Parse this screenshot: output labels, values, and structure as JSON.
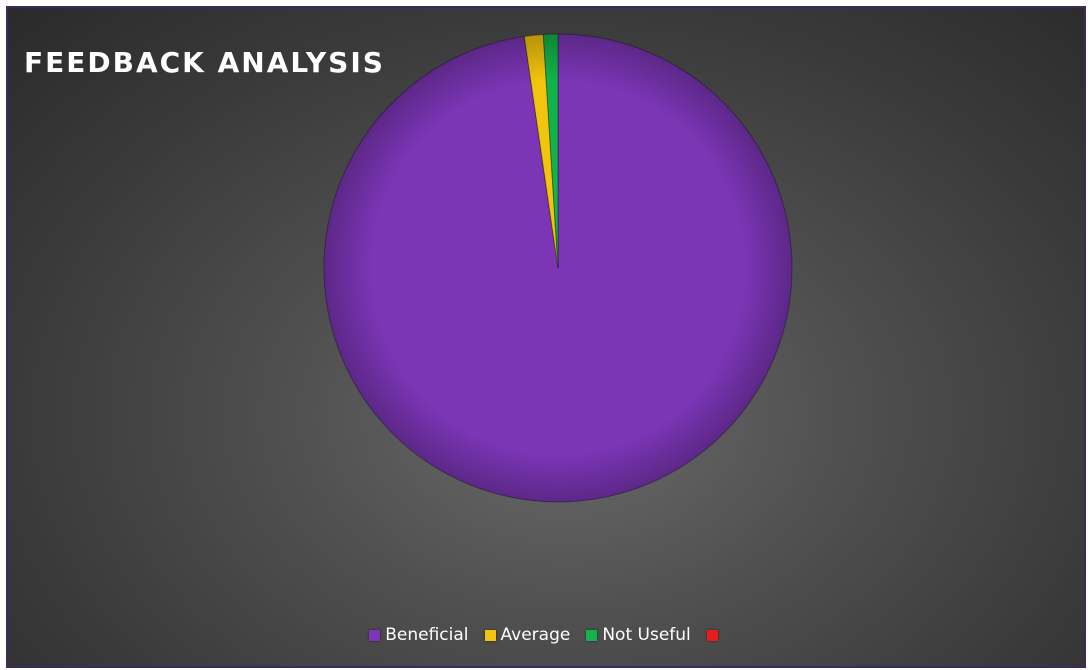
{
  "chart_data": {
    "type": "pie",
    "title": "FEEDBACK ANALYSIS",
    "categories": [
      "Beneficial",
      "Average",
      "Not Useful",
      ""
    ],
    "values": [
      97.7,
      1.3,
      1.0,
      0
    ],
    "colors": [
      "#7b35b5",
      "#f2c40d",
      "#12b34a",
      "#e81c1c"
    ],
    "legend_position": "bottom",
    "grid": false
  }
}
